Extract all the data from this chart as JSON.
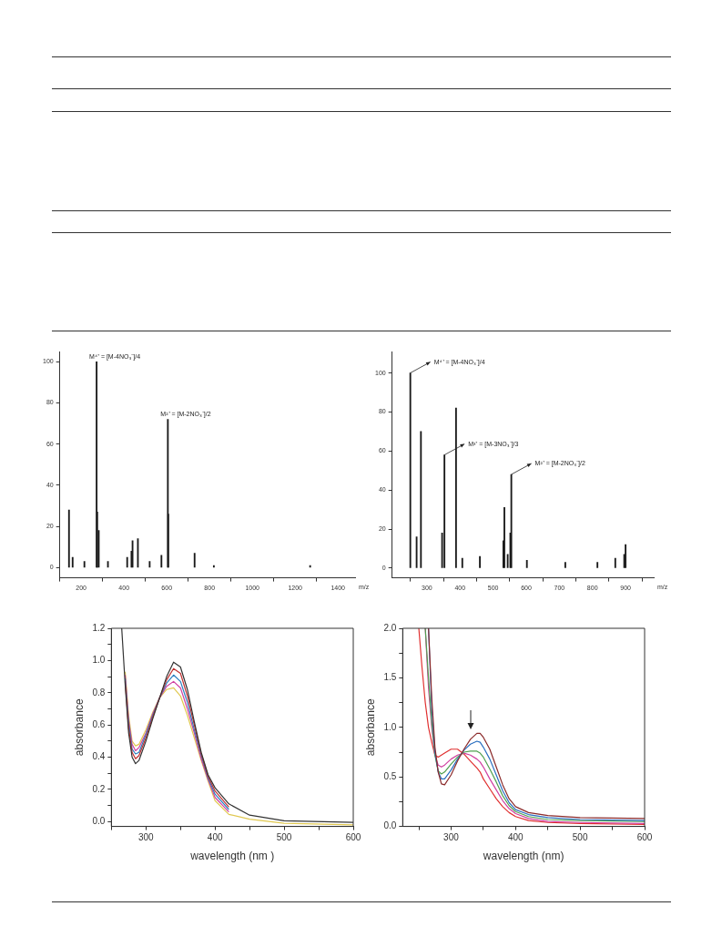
{
  "chart_data": [
    {
      "type": "bar",
      "xlabel": "m/z",
      "xlim": [
        100,
        1480
      ],
      "ylim": [
        -5,
        105
      ],
      "xticks": [
        200,
        400,
        600,
        800,
        1000,
        1200,
        1400
      ],
      "yticks": [
        0,
        20,
        40,
        60,
        80,
        100
      ],
      "grid": false,
      "legend": false,
      "x": [
        143,
        160,
        215,
        272,
        275,
        282,
        325,
        415,
        435,
        440,
        465,
        520,
        575,
        605,
        607,
        730,
        820,
        1270
      ],
      "values": [
        28,
        5,
        3,
        100,
        27,
        18,
        3,
        5,
        8,
        13,
        14,
        3,
        6,
        72,
        26,
        7,
        1,
        1
      ],
      "color": "#1a1a1a",
      "annotations": [
        {
          "text": "M⁴⁺ = [M-4NO₃⁻]/4",
          "x": 272,
          "y": 100
        },
        {
          "text": "M²⁺ = [M-2NO₃⁻]/2",
          "x": 605,
          "y": 72
        }
      ]
    },
    {
      "type": "bar",
      "xlabel": "m/z",
      "xlim": [
        195,
        985
      ],
      "ylim": [
        -5,
        111
      ],
      "xticks": [
        300,
        400,
        500,
        600,
        700,
        800,
        900
      ],
      "yticks": [
        0,
        20,
        40,
        60,
        80,
        100
      ],
      "grid": false,
      "legend": false,
      "x": [
        250,
        269,
        280,
        282,
        346,
        353,
        388,
        407,
        460,
        531,
        534,
        544,
        552,
        555,
        602,
        718,
        815,
        869,
        896,
        900
      ],
      "values": [
        100,
        16,
        null,
        70,
        18,
        58,
        82,
        5,
        6,
        14,
        31,
        7,
        18,
        48,
        4,
        3,
        3,
        5,
        7,
        12
      ],
      "color": "#1a1a1a",
      "annotations": [
        {
          "text": "M⁴⁺ = [M-4NO₃⁻]/4",
          "x": 250,
          "y": 100
        },
        {
          "text": "M³⁺ = [M-3NO₃⁻]/3",
          "x": 353,
          "y": 58
        },
        {
          "text": "M²⁺ = [M-2NO₃⁻]/2",
          "x": 555,
          "y": 48
        }
      ]
    },
    {
      "type": "line",
      "xlabel": "wavelength (nm )",
      "ylabel": "absorbance",
      "xlim": [
        250,
        600
      ],
      "ylim": [
        -0.03,
        1.2
      ],
      "grid": false,
      "legend": false,
      "marker": "none",
      "xticks": [
        {
          "value": 250,
          "label": null
        },
        300,
        {
          "value": 350,
          "label": null
        },
        400,
        {
          "value": 450,
          "label": null
        },
        500,
        {
          "value": 550,
          "label": null
        },
        600
      ],
      "yticks": [
        {
          "value": 0,
          "label": "0.0"
        },
        {
          "value": 0.1,
          "label": null
        },
        0.2,
        {
          "value": 0.3,
          "label": null
        },
        0.4,
        {
          "value": 0.5,
          "label": null
        },
        0.6,
        {
          "value": 0.7,
          "label": null
        },
        0.8,
        {
          "value": 0.9,
          "label": null
        },
        {
          "value": 1,
          "label": "1.0"
        },
        {
          "value": 1.1,
          "label": null
        },
        1.2
      ],
      "x": [
        265,
        270,
        275,
        280,
        285,
        290,
        300,
        310,
        320,
        330,
        340,
        350,
        360,
        370,
        380,
        390,
        400,
        420,
        450,
        500,
        600
      ],
      "series": [
        {
          "color": "#333333",
          "values": [
            1.2,
            0.85,
            0.55,
            0.4,
            0.36,
            0.38,
            0.5,
            0.64,
            0.77,
            0.9,
            0.99,
            0.96,
            0.82,
            0.62,
            0.43,
            0.29,
            0.21,
            0.11,
            0.04,
            0.005,
            -0.005
          ]
        },
        {
          "color": "#c03030",
          "values": [
            null,
            0.87,
            0.58,
            0.43,
            0.39,
            0.41,
            0.52,
            0.65,
            0.77,
            0.88,
            0.95,
            0.92,
            0.78,
            0.6,
            0.42,
            0.28,
            0.19,
            0.09,
            null,
            null,
            null
          ]
        },
        {
          "color": "#2a7fc0",
          "values": [
            null,
            0.89,
            0.61,
            0.45,
            0.42,
            0.43,
            0.54,
            0.66,
            0.77,
            0.86,
            0.91,
            0.87,
            0.74,
            0.57,
            0.41,
            0.27,
            0.17,
            0.075,
            null,
            null,
            null
          ]
        },
        {
          "color": "#d040a0",
          "values": [
            null,
            0.91,
            0.63,
            0.48,
            0.44,
            0.46,
            0.55,
            0.67,
            0.77,
            0.84,
            0.87,
            0.83,
            0.7,
            0.55,
            0.39,
            0.26,
            0.15,
            0.06,
            null,
            null,
            null
          ]
        },
        {
          "color": "#e0c850",
          "values": [
            null,
            0.93,
            0.66,
            0.5,
            0.47,
            0.48,
            0.57,
            0.68,
            0.77,
            0.82,
            0.83,
            0.78,
            0.66,
            0.52,
            0.38,
            0.25,
            0.13,
            0.045,
            0.015,
            -0.01,
            -0.02
          ]
        }
      ]
    },
    {
      "type": "line",
      "xlabel": "wavelength (nm)",
      "ylabel": "absorbance",
      "xlim": [
        225,
        600
      ],
      "ylim": [
        0,
        2
      ],
      "grid": false,
      "legend": false,
      "marker": "none",
      "xticks": [
        {
          "value": 250,
          "label": null
        },
        300,
        {
          "value": 350,
          "label": null
        },
        400,
        {
          "value": 450,
          "label": null
        },
        500,
        {
          "value": 550,
          "label": null
        },
        600
      ],
      "yticks": [
        {
          "value": 0,
          "label": "0.0"
        },
        {
          "value": 0.25,
          "label": null
        },
        0.5,
        {
          "value": 0.75,
          "label": null
        },
        {
          "value": 1,
          "label": "1.0"
        },
        {
          "value": 1.25,
          "label": null
        },
        1.5,
        {
          "value": 1.75,
          "label": null
        },
        {
          "value": 2,
          "label": "2.0"
        }
      ],
      "x": [
        250,
        255,
        260,
        265,
        270,
        275,
        280,
        285,
        290,
        300,
        310,
        320,
        330,
        340,
        345,
        350,
        360,
        370,
        380,
        390,
        400,
        420,
        450,
        500,
        600
      ],
      "series": [
        {
          "color": "#8b2a2a",
          "values": [
            null,
            null,
            null,
            2.0,
            1.3,
            0.8,
            0.55,
            0.43,
            0.42,
            0.52,
            0.66,
            0.78,
            0.88,
            0.94,
            0.94,
            0.9,
            0.78,
            0.6,
            0.42,
            0.28,
            0.2,
            0.14,
            0.11,
            0.09,
            0.08
          ]
        },
        {
          "color": "#2a6fc0",
          "values": [
            null,
            null,
            null,
            2.0,
            1.2,
            0.75,
            0.55,
            0.48,
            0.48,
            0.57,
            0.68,
            0.77,
            0.83,
            0.86,
            0.85,
            0.8,
            0.68,
            0.52,
            0.36,
            0.24,
            0.17,
            0.12,
            0.09,
            0.07,
            0.06
          ]
        },
        {
          "color": "#50a050",
          "values": [
            null,
            null,
            2.0,
            1.5,
            1.05,
            0.72,
            0.56,
            0.53,
            0.55,
            0.63,
            0.7,
            0.75,
            0.76,
            0.76,
            0.74,
            0.7,
            0.58,
            0.45,
            0.31,
            0.21,
            0.15,
            0.1,
            0.07,
            0.06,
            0.05
          ]
        },
        {
          "color": "#d040a0",
          "values": [
            null,
            null,
            2.0,
            1.4,
            1.0,
            0.72,
            0.62,
            0.6,
            0.62,
            0.68,
            0.72,
            0.74,
            0.72,
            0.68,
            0.65,
            0.6,
            0.48,
            0.37,
            0.26,
            0.18,
            0.13,
            0.08,
            0.05,
            0.04,
            0.03
          ]
        },
        {
          "color": "#e03030",
          "values": [
            2.0,
            1.6,
            1.25,
            1.0,
            0.85,
            0.72,
            0.7,
            0.72,
            0.74,
            0.78,
            0.78,
            0.73,
            0.66,
            0.59,
            0.55,
            0.48,
            0.38,
            0.28,
            0.2,
            0.14,
            0.1,
            0.06,
            0.04,
            0.03,
            0.02
          ]
        }
      ]
    }
  ]
}
